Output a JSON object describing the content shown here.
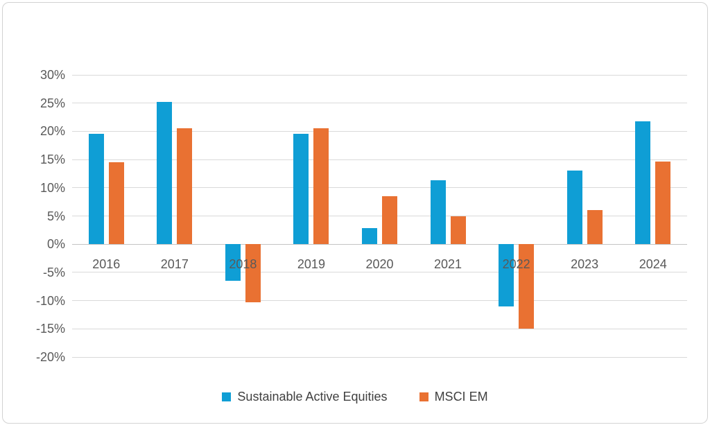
{
  "chart_data": {
    "type": "bar",
    "title": "",
    "xlabel": "",
    "ylabel": "",
    "unit": "%",
    "grid": true,
    "legend_position": "bottom",
    "ylim": [
      -20,
      30
    ],
    "ytick_step": 5,
    "yticks": [
      {
        "value": 30,
        "label": "30%"
      },
      {
        "value": 25,
        "label": "25%"
      },
      {
        "value": 20,
        "label": "20%"
      },
      {
        "value": 15,
        "label": "15%"
      },
      {
        "value": 10,
        "label": "10%"
      },
      {
        "value": 5,
        "label": "5%"
      },
      {
        "value": 0,
        "label": "0%"
      },
      {
        "value": -5,
        "label": "-5%"
      },
      {
        "value": -10,
        "label": "-10%"
      },
      {
        "value": -15,
        "label": "-15%"
      },
      {
        "value": -20,
        "label": "-20%"
      }
    ],
    "categories": [
      "2016",
      "2017",
      "2018",
      "2019",
      "2020",
      "2021",
      "2022",
      "2023",
      "2024"
    ],
    "series": [
      {
        "name": "Sustainable Active Equities",
        "color": "#0F9ED5",
        "values": [
          19.5,
          25.2,
          -6.5,
          19.5,
          2.9,
          11.3,
          -11.0,
          13.0,
          21.8
        ]
      },
      {
        "name": "MSCI EM",
        "color": "#E97132",
        "values": [
          14.5,
          20.5,
          -10.3,
          20.6,
          8.5,
          4.9,
          -15.0,
          6.0,
          14.7
        ]
      }
    ]
  },
  "colors": {
    "card_border": "#D2D2D2",
    "gridline": "#D9D9D9",
    "zero_line": "#C3C3C3",
    "tick_text": "#595959",
    "legend_text": "#404040"
  }
}
